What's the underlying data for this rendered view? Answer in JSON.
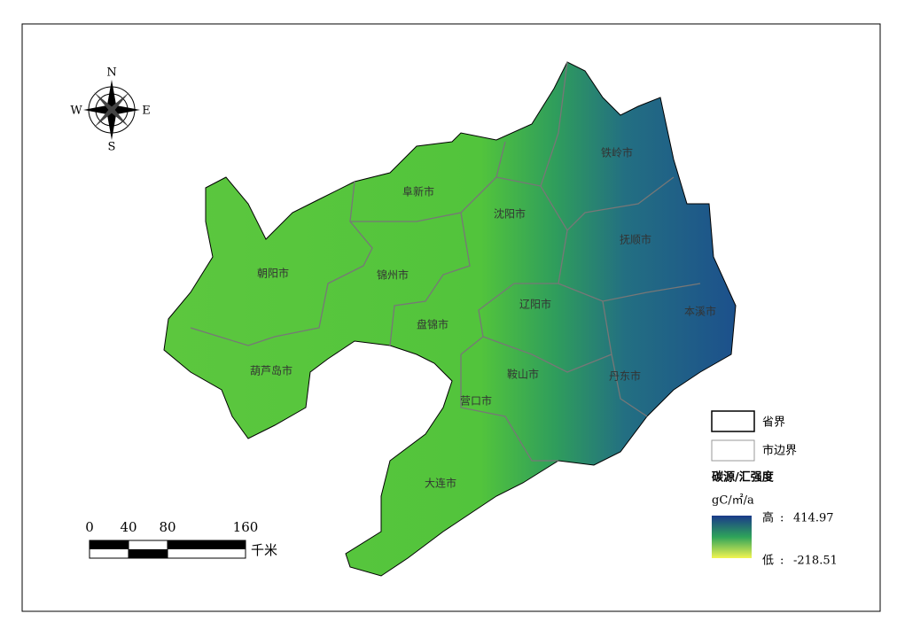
{
  "compass": {
    "n": "N",
    "s": "S",
    "e": "E",
    "w": "W"
  },
  "cities": [
    {
      "label": "铁岭市"
    },
    {
      "label": "阜新市"
    },
    {
      "label": "沈阳市"
    },
    {
      "label": "抚顺市"
    },
    {
      "label": "朝阳市"
    },
    {
      "label": "锦州市"
    },
    {
      "label": "辽阳市"
    },
    {
      "label": "本溪市"
    },
    {
      "label": "盘锦市"
    },
    {
      "label": "葫芦岛市"
    },
    {
      "label": "鞍山市"
    },
    {
      "label": "丹东市"
    },
    {
      "label": "营口市"
    },
    {
      "label": "大连市"
    }
  ],
  "legend": {
    "items": [
      {
        "label": "省界"
      },
      {
        "label": "市边界"
      }
    ],
    "title": "碳源/汇强度",
    "unit": "gC/㎡/a",
    "high": {
      "label": "高",
      "separator": ":",
      "value": 414.97
    },
    "low": {
      "label": "低",
      "separator": ":",
      "value": -218.51
    }
  },
  "scale_bar": {
    "ticks": [
      0,
      40,
      80,
      160
    ],
    "unit": "千米"
  }
}
